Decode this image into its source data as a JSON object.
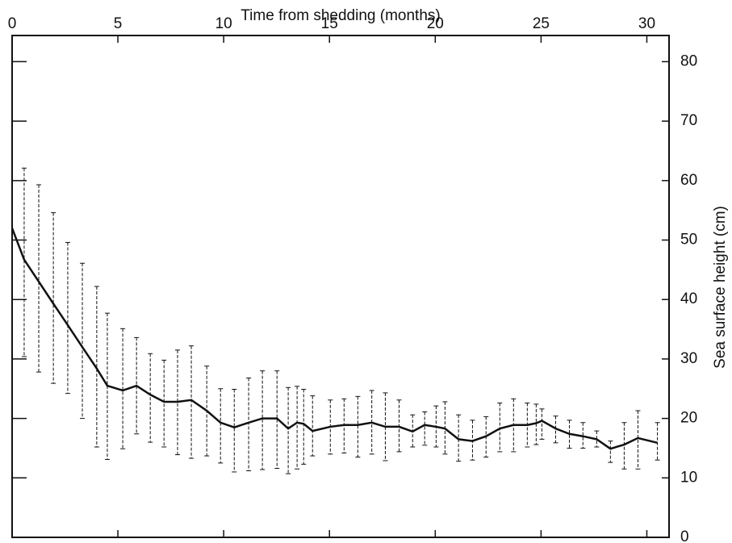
{
  "chart_data": {
    "type": "line",
    "x_label": "Time from shedding (months)",
    "y_label": "Sea surface height (cm)",
    "xlim": [
      0,
      31.05
    ],
    "xticks": [
      0,
      5,
      10,
      15,
      20,
      25,
      30
    ],
    "ylim": [
      0,
      84.4
    ],
    "yticks": [
      0,
      10,
      20,
      30,
      40,
      50,
      60,
      70,
      80
    ],
    "series": [
      {
        "color": "#111111",
        "x": [
          0,
          0.57,
          1.26,
          1.95,
          2.63,
          3.32,
          4.0,
          4.5,
          5.23,
          5.88,
          6.53,
          7.18,
          7.82,
          8.47,
          9.2,
          9.85,
          10.5,
          11.18,
          11.83,
          12.52,
          13.05,
          13.47,
          13.78,
          14.2,
          15.04,
          15.69,
          16.34,
          17.0,
          17.64,
          18.29,
          18.93,
          19.5,
          20.04,
          20.46,
          21.1,
          21.76,
          22.4,
          23.05,
          23.7,
          24.35,
          24.77,
          25.04,
          25.69,
          26.34,
          26.98,
          27.63,
          28.28,
          28.93,
          29.58,
          30.5
        ],
        "values": [
          52.0,
          46.7,
          43.0,
          39.3,
          35.7,
          32.0,
          28.4,
          25.5,
          24.7,
          25.5,
          24.0,
          22.8,
          22.8,
          23.1,
          21.3,
          19.3,
          18.5,
          19.3,
          20.0,
          20.0,
          18.3,
          19.3,
          19.1,
          17.9,
          18.6,
          18.9,
          18.9,
          19.3,
          18.6,
          18.6,
          17.8,
          18.9,
          18.6,
          18.3,
          16.5,
          16.2,
          17.0,
          18.3,
          18.9,
          18.9,
          19.2,
          19.6,
          18.3,
          17.4,
          17.0,
          16.5,
          14.9,
          15.6,
          16.7,
          15.9
        ],
        "lower": [
          null,
          30.4,
          27.8,
          25.9,
          24.2,
          20.0,
          15.2,
          13.1,
          14.9,
          17.4,
          16.0,
          15.2,
          13.9,
          13.3,
          13.7,
          12.5,
          11.0,
          11.2,
          11.4,
          11.6,
          10.7,
          11.5,
          12.3,
          13.7,
          14.0,
          14.2,
          13.5,
          14.0,
          12.9,
          14.4,
          15.2,
          15.5,
          15.2,
          14.0,
          12.8,
          13.0,
          13.5,
          14.4,
          14.4,
          15.2,
          15.6,
          16.5,
          15.9,
          15.0,
          15.0,
          15.2,
          12.6,
          11.5,
          11.5,
          13.0
        ],
        "upper": [
          null,
          62.1,
          59.3,
          54.6,
          49.6,
          46.1,
          42.2,
          37.7,
          35.1,
          33.6,
          30.9,
          29.8,
          31.5,
          32.2,
          28.8,
          25.0,
          24.9,
          26.8,
          28.0,
          28.0,
          25.2,
          25.4,
          24.9,
          23.8,
          23.1,
          23.3,
          23.7,
          24.7,
          24.3,
          23.1,
          20.6,
          21.1,
          22.1,
          22.8,
          20.6,
          19.7,
          20.3,
          22.6,
          23.3,
          22.6,
          22.4,
          21.6,
          20.4,
          19.7,
          19.3,
          17.9,
          16.2,
          19.3,
          21.3,
          19.3
        ]
      }
    ]
  }
}
